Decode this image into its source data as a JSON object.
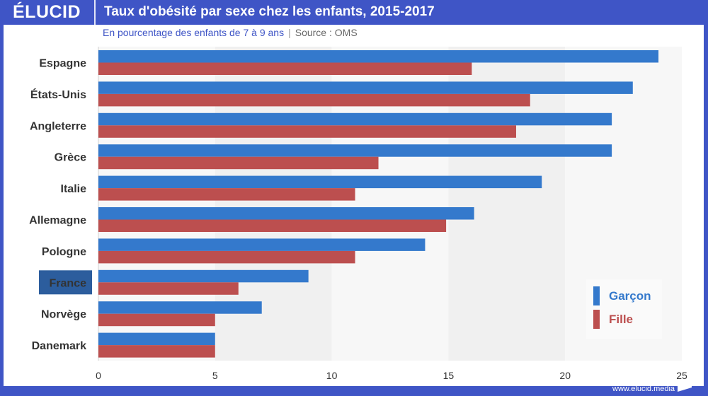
{
  "header": {
    "logo": "ÉLUCID",
    "title": "Taux d'obésité par sexe chez les enfants, 2015-2017"
  },
  "subtitle": {
    "description": "En pourcentage des enfants de 7 à 9 ans",
    "separator": "|",
    "source": "Source : OMS"
  },
  "footer": {
    "url": "www.elucid.media"
  },
  "colors": {
    "brand": "#3f55c6",
    "garcon": "#3479cc",
    "fille": "#bc4f4f",
    "highlight": "#2c5d9d"
  },
  "chart_data": {
    "type": "bar",
    "orientation": "horizontal",
    "title": "Taux d'obésité par sexe chez les enfants, 2015-2017",
    "subtitle": "En pourcentage des enfants de 7 à 9 ans | Source : OMS",
    "xlabel": "",
    "ylabel": "",
    "xlim": [
      0,
      25
    ],
    "xticks": [
      0,
      5,
      10,
      15,
      20,
      25
    ],
    "categories": [
      "Espagne",
      "États-Unis",
      "Angleterre",
      "Grèce",
      "Italie",
      "Allemagne",
      "Pologne",
      "France",
      "Norvège",
      "Danemark"
    ],
    "highlighted_category": "France",
    "series": [
      {
        "name": "Garçon",
        "values": [
          24,
          22.9,
          22,
          22,
          19,
          16.1,
          14,
          9,
          7,
          5
        ]
      },
      {
        "name": "Fille",
        "values": [
          16,
          18.5,
          17.9,
          12,
          11,
          14.9,
          11,
          6,
          5,
          5
        ]
      }
    ],
    "legend": {
      "placement": "bottom-right",
      "entries": [
        "Garçon",
        "Fille"
      ]
    },
    "grid": "alternating vertical bands"
  }
}
